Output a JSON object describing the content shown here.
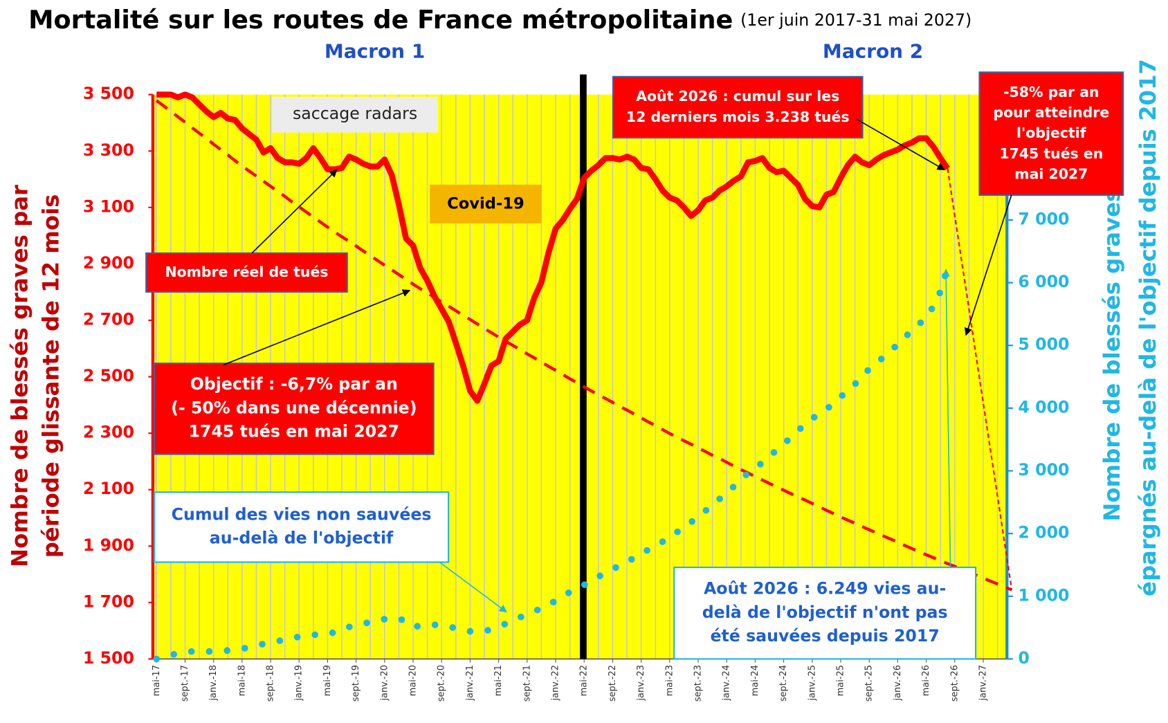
{
  "chart_data": {
    "type": "line",
    "title": "Mortalité sur les routes de France métropolitaine",
    "subtitle": "(1er juin 2017-31 mai 2027)",
    "periods": [
      "Macron 1",
      "Macron 2"
    ],
    "ylabel": [
      "Nombre de blessés graves par",
      "période glissante de 12 mois"
    ],
    "y2label": [
      "Nombre de blessés graves non",
      "épargnés au-delà de l'objectif depuis 2017"
    ],
    "annotations": [
      [
        "saccage radars"
      ],
      [
        "Covid-19"
      ],
      [
        "Nombre réel de tués"
      ],
      [
        "Objectif : -6,7% par an",
        "(- 50% dans une décennie)",
        "1745 tués en mai 2027"
      ],
      [
        "Août 2026 : cumul sur les",
        "12 derniers mois 3.238 tués"
      ],
      [
        "-58% par an",
        "pour atteindre",
        "l'objectif",
        "1745 tués en",
        "mai 2027"
      ],
      [
        "Cumul des vies non sauvées",
        "au-delà de l'objectif"
      ],
      [
        "Août 2026 : 6.249 vies au-",
        "delà de l'objectif n'ont pas",
        "été sauvées depuis 2017"
      ]
    ],
    "categories": [
      "mai-17",
      null,
      null,
      null,
      "sept.-17",
      null,
      null,
      null,
      "janv.-18",
      null,
      null,
      null,
      "mai-18",
      null,
      null,
      null,
      "sept.-18",
      null,
      null,
      null,
      "janv.-19",
      null,
      null,
      null,
      "mai-19",
      null,
      null,
      null,
      "sept.-19",
      null,
      null,
      null,
      "janv.-20",
      null,
      null,
      null,
      "mai-20",
      null,
      null,
      null,
      "sept.-20",
      null,
      null,
      null,
      "janv.-21",
      null,
      null,
      null,
      "mai-21",
      null,
      null,
      null,
      "sept.-21",
      null,
      null,
      null,
      "janv.-22",
      null,
      null,
      null,
      "mai-22",
      null,
      null,
      null,
      "sept.-22",
      null,
      null,
      null,
      "janv.-23",
      null,
      null,
      null,
      "mai-23",
      null,
      null,
      null,
      "sept.-23",
      null,
      null,
      null,
      "janv.-24",
      null,
      null,
      null,
      "mai-24",
      null,
      null,
      null,
      "sept.-24",
      null,
      null,
      null,
      "janv.-25",
      null,
      null,
      null,
      "mai-25",
      null,
      null,
      null,
      "sept.-25",
      null,
      null,
      null,
      "janv.-26",
      null,
      null,
      null,
      "mai-26",
      null,
      null,
      null,
      "sept.-26",
      null,
      null,
      null,
      "janv.-27",
      null,
      null,
      null,
      null
    ],
    "series": [
      {
        "color": "#ff0000",
        "axis": "y",
        "linestyle": "solid",
        "values": [
          3500,
          3500,
          3500,
          3490,
          3500,
          3490,
          3465,
          3440,
          3420,
          3435,
          3415,
          3410,
          3380,
          3360,
          3340,
          3295,
          3310,
          3275,
          3260,
          3260,
          3255,
          3275,
          3310,
          3275,
          3235,
          3235,
          3240,
          3280,
          3270,
          3255,
          3245,
          3245,
          3270,
          3215,
          3110,
          2990,
          2965,
          2885,
          2840,
          2785,
          2740,
          2695,
          2620,
          2540,
          2450,
          2415,
          2475,
          2540,
          2555,
          2635,
          2660,
          2685,
          2700,
          2780,
          2835,
          2940,
          3025,
          3055,
          3095,
          3130,
          3205,
          3230,
          3250,
          3275,
          3275,
          3270,
          3280,
          3270,
          3240,
          3235,
          3200,
          3160,
          3135,
          3125,
          3100,
          3070,
          3090,
          3125,
          3135,
          3160,
          3175,
          3195,
          3210,
          3260,
          3265,
          3275,
          3240,
          3225,
          3230,
          3205,
          3180,
          3130,
          3105,
          3100,
          3145,
          3155,
          3205,
          3250,
          3280,
          3260,
          3250,
          3270,
          3285,
          3295,
          3305,
          3320,
          3330,
          3345,
          3345,
          3315,
          3275,
          3238,
          null,
          null,
          null,
          null,
          null,
          null,
          null,
          null,
          null
        ]
      },
      {
        "color": "#ff0000",
        "axis": "y",
        "linestyle": "dashed",
        "values": [
          3479,
          3460,
          3440,
          3421,
          3402,
          3382,
          3363,
          3344,
          3324,
          3305,
          3286,
          3266,
          3247,
          3229,
          3211,
          3193,
          3175,
          3157,
          3139,
          3120,
          3102,
          3084,
          3066,
          3048,
          3030,
          3013,
          2996,
          2980,
          2963,
          2946,
          2929,
          2912,
          2895,
          2879,
          2862,
          2845,
          2828,
          2812,
          2797,
          2781,
          2765,
          2750,
          2734,
          2718,
          2703,
          2687,
          2671,
          2656,
          2640,
          2625,
          2611,
          2596,
          2581,
          2567,
          2552,
          2537,
          2523,
          2508,
          2493,
          2479,
          2464,
          2450,
          2436,
          2423,
          2409,
          2395,
          2382,
          2368,
          2354,
          2340,
          2327,
          2313,
          2299,
          2286,
          2273,
          2261,
          2248,
          2235,
          2222,
          2210,
          2197,
          2184,
          2171,
          2159,
          2146,
          2134,
          2122,
          2110,
          2098,
          2086,
          2074,
          2063,
          2051,
          2039,
          2027,
          2015,
          2003,
          1992,
          1981,
          1969,
          1958,
          1947,
          1936,
          1925,
          1914,
          1902,
          1891,
          1880,
          1869,
          1859,
          1848,
          1838,
          1828,
          1817,
          1807,
          1797,
          1786,
          1776,
          1766,
          1755,
          1745
        ]
      },
      {
        "color": "#ff0000",
        "axis": "y",
        "linestyle": "dashed",
        "values": [
          null,
          null,
          null,
          null,
          null,
          null,
          null,
          null,
          null,
          null,
          null,
          null,
          null,
          null,
          null,
          null,
          null,
          null,
          null,
          null,
          null,
          null,
          null,
          null,
          null,
          null,
          null,
          null,
          null,
          null,
          null,
          null,
          null,
          null,
          null,
          null,
          null,
          null,
          null,
          null,
          null,
          null,
          null,
          null,
          null,
          null,
          null,
          null,
          null,
          null,
          null,
          null,
          null,
          null,
          null,
          null,
          null,
          null,
          null,
          null,
          null,
          null,
          null,
          null,
          null,
          null,
          null,
          null,
          null,
          null,
          null,
          null,
          null,
          null,
          null,
          null,
          null,
          null,
          null,
          null,
          null,
          null,
          null,
          null,
          null,
          null,
          null,
          null,
          null,
          null,
          null,
          null,
          null,
          null,
          null,
          null,
          null,
          null,
          null,
          null,
          null,
          null,
          null,
          null,
          null,
          null,
          null,
          null,
          null,
          null,
          null,
          3238,
          3072,
          2906,
          2740,
          2574,
          2408,
          2242,
          2077,
          1911,
          1745
        ]
      },
      {
        "color": "#1fb7e6",
        "axis": "y2",
        "linestyle": "dotted",
        "values": [
          0,
          30,
          60,
          90,
          110,
          120,
          120,
          120,
          120,
          125,
          135,
          145,
          160,
          190,
          215,
          240,
          260,
          285,
          305,
          330,
          355,
          375,
          385,
          388,
          390,
          430,
          480,
          510,
          540,
          560,
          590,
          620,
          635,
          645,
          650,
          590,
          510,
          530,
          555,
          545,
          530,
          515,
          490,
          460,
          440,
          440,
          440,
          475,
          520,
          560,
          610,
          665,
          710,
          760,
          805,
          860,
          930,
          990,
          1070,
          1120,
          1180,
          1250,
          1310,
          1375,
          1440,
          1480,
          1550,
          1610,
          1690,
          1740,
          1800,
          1870,
          1940,
          2020,
          2100,
          2180,
          2270,
          2360,
          2450,
          2550,
          2650,
          2750,
          2870,
          2960,
          3050,
          3130,
          3230,
          3330,
          3430,
          3530,
          3640,
          3740,
          3840,
          3890,
          3980,
          4080,
          4180,
          4280,
          4380,
          4520,
          4620,
          4720,
          4810,
          4920,
          5010,
          5140,
          5220,
          5340,
          5450,
          5620,
          5860,
          6249,
          null,
          null,
          null,
          null,
          null,
          null,
          null,
          null,
          null
        ]
      }
    ],
    "ylim": [
      1500,
      3500
    ],
    "yticks": [
      {
        "value": 1500,
        "label": "1 500"
      },
      {
        "value": 1700,
        "label": "1 700"
      },
      {
        "value": 1900,
        "label": "1 900"
      },
      {
        "value": 2100,
        "label": "2 100"
      },
      {
        "value": 2300,
        "label": "2 300"
      },
      {
        "value": 2500,
        "label": "2 500"
      },
      {
        "value": 2700,
        "label": "2 700"
      },
      {
        "value": 2900,
        "label": "2 900"
      },
      {
        "value": 3100,
        "label": "3 100"
      },
      {
        "value": 3300,
        "label": "3 300"
      },
      {
        "value": 3500,
        "label": "3 500"
      }
    ],
    "y2lim": [
      0,
      9000
    ],
    "y2ticks": [
      0,
      {
        "value": 1000,
        "label": "1 000"
      },
      {
        "value": 2000,
        "label": "2 000"
      },
      {
        "value": 3000,
        "label": "3 000"
      },
      {
        "value": 4000,
        "label": "4 000"
      },
      {
        "value": 5000,
        "label": "5 000"
      },
      {
        "value": 6000,
        "label": "6 000"
      },
      {
        "value": 7000,
        "label": "7 000"
      }
    ],
    "grid": true,
    "plot_background": "#ffff00",
    "y_color": "#ff0000",
    "y2_color": "#1fb7e6"
  }
}
